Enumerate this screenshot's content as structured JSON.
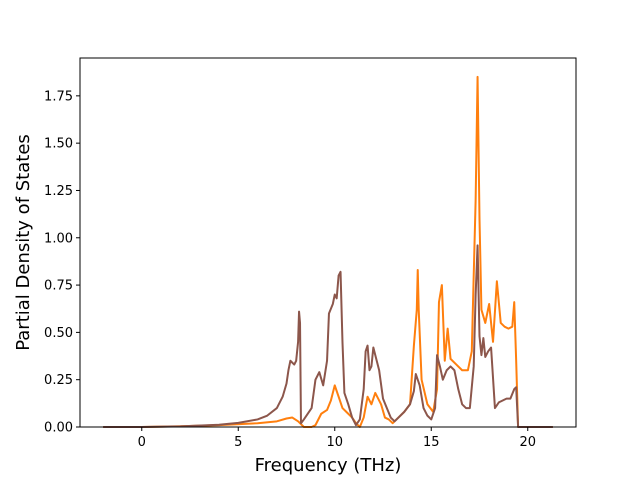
{
  "chart_data": {
    "type": "line",
    "xlabel": "Frequency (THz)",
    "ylabel": "Partial Density of States",
    "xlim": [
      -3.2,
      22.5
    ],
    "ylim": [
      0,
      1.95
    ],
    "grid": false,
    "x_ticks": [
      0,
      5,
      10,
      15,
      20
    ],
    "x_tick_labels": [
      "0",
      "5",
      "10",
      "15",
      "20"
    ],
    "y_ticks": [
      0,
      0.25,
      0.5,
      0.75,
      1.0,
      1.25,
      1.5,
      1.75
    ],
    "y_tick_labels": [
      "0.00",
      "0.25",
      "0.50",
      "0.75",
      "1.00",
      "1.25",
      "1.50",
      "1.75"
    ],
    "series": [
      {
        "color": "#ff7f0e",
        "x": [
          -2.0,
          0,
          2,
          4,
          6,
          7.0,
          7.5,
          7.8,
          8.1,
          8.2,
          8.4,
          8.8,
          9.0,
          9.3,
          9.6,
          9.8,
          10.0,
          10.2,
          10.4,
          10.6,
          10.9,
          11.1,
          11.3,
          11.5,
          11.7,
          11.9,
          12.1,
          12.4,
          12.6,
          12.8,
          13.0,
          13.3,
          13.6,
          13.9,
          14.1,
          14.25,
          14.3,
          14.35,
          14.5,
          14.8,
          15.1,
          15.3,
          15.4,
          15.55,
          15.7,
          15.85,
          16.0,
          16.3,
          16.6,
          16.9,
          17.1,
          17.3,
          17.4,
          17.5,
          17.6,
          17.8,
          18.0,
          18.2,
          18.4,
          18.6,
          18.8,
          19.0,
          19.2,
          19.3,
          19.4,
          19.5,
          21.3
        ],
        "y": [
          0,
          0,
          0.004,
          0.01,
          0.02,
          0.03,
          0.045,
          0.05,
          0.03,
          0.02,
          0.0,
          0.0,
          0.01,
          0.07,
          0.09,
          0.14,
          0.22,
          0.16,
          0.1,
          0.08,
          0.05,
          0.02,
          0.0,
          0.05,
          0.16,
          0.12,
          0.18,
          0.12,
          0.05,
          0.04,
          0.02,
          0.05,
          0.08,
          0.12,
          0.43,
          0.62,
          0.83,
          0.62,
          0.25,
          0.12,
          0.08,
          0.2,
          0.66,
          0.75,
          0.35,
          0.52,
          0.36,
          0.33,
          0.3,
          0.3,
          0.4,
          1.2,
          1.85,
          1.1,
          0.62,
          0.55,
          0.65,
          0.45,
          0.77,
          0.55,
          0.53,
          0.52,
          0.53,
          0.66,
          0.35,
          0.0,
          0.0
        ]
      },
      {
        "color": "#8c564b",
        "x": [
          -2.0,
          0,
          2,
          4,
          5,
          6,
          6.5,
          7.0,
          7.3,
          7.5,
          7.6,
          7.7,
          7.9,
          8.0,
          8.1,
          8.15,
          8.2,
          8.25,
          8.4,
          8.8,
          9.0,
          9.2,
          9.4,
          9.6,
          9.7,
          9.9,
          10.0,
          10.1,
          10.2,
          10.3,
          10.4,
          10.5,
          10.7,
          10.9,
          11.1,
          11.3,
          11.5,
          11.6,
          11.7,
          11.8,
          11.9,
          12.0,
          12.1,
          12.3,
          12.5,
          12.7,
          12.9,
          13.1,
          13.3,
          13.6,
          13.9,
          14.1,
          14.2,
          14.4,
          14.6,
          14.8,
          15.0,
          15.2,
          15.3,
          15.45,
          15.6,
          15.8,
          16.0,
          16.2,
          16.4,
          16.6,
          16.8,
          17.0,
          17.2,
          17.3,
          17.4,
          17.5,
          17.6,
          17.7,
          17.8,
          17.95,
          18.1,
          18.3,
          18.5,
          18.7,
          18.9,
          19.1,
          19.3,
          19.4,
          19.5,
          21.3
        ],
        "y": [
          0,
          0,
          0.003,
          0.012,
          0.022,
          0.04,
          0.06,
          0.1,
          0.16,
          0.23,
          0.3,
          0.35,
          0.33,
          0.35,
          0.45,
          0.61,
          0.55,
          0.02,
          0.04,
          0.1,
          0.25,
          0.29,
          0.22,
          0.35,
          0.6,
          0.65,
          0.7,
          0.68,
          0.8,
          0.82,
          0.45,
          0.18,
          0.12,
          0.05,
          0.01,
          0.04,
          0.2,
          0.4,
          0.43,
          0.3,
          0.32,
          0.42,
          0.38,
          0.3,
          0.15,
          0.1,
          0.05,
          0.03,
          0.05,
          0.08,
          0.12,
          0.19,
          0.28,
          0.22,
          0.1,
          0.06,
          0.04,
          0.1,
          0.38,
          0.32,
          0.25,
          0.3,
          0.32,
          0.3,
          0.2,
          0.12,
          0.1,
          0.1,
          0.32,
          0.7,
          0.96,
          0.48,
          0.38,
          0.47,
          0.37,
          0.4,
          0.42,
          0.1,
          0.13,
          0.14,
          0.15,
          0.15,
          0.2,
          0.21,
          0.0,
          0.0
        ]
      }
    ]
  }
}
